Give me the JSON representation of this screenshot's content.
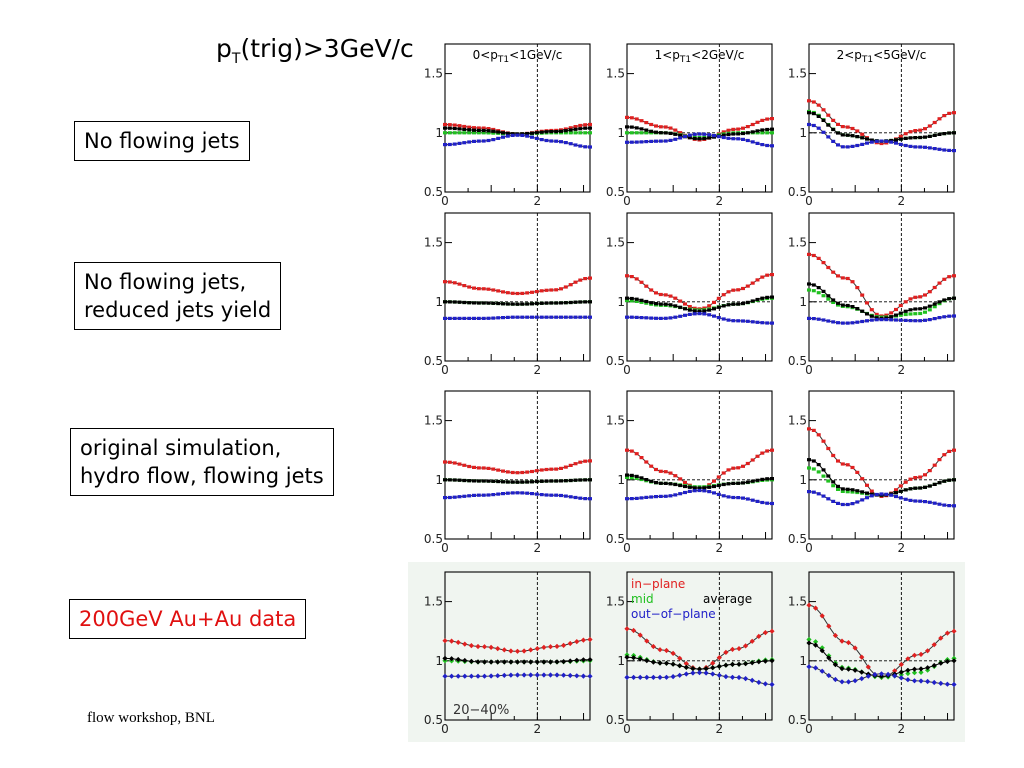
{
  "headline": {
    "main": "p",
    "sub": "T",
    "rest": "(trig)>3GeV/c"
  },
  "column_titles": [
    {
      "pre": "0<p",
      "sub": "T1",
      "post": "<1GeV/c"
    },
    {
      "pre": "1<p",
      "sub": "T1",
      "post": "<2GeV/c"
    },
    {
      "pre": "2<p",
      "sub": "T1",
      "post": "<5GeV/c"
    }
  ],
  "row_labels": [
    [
      "No flowing jets"
    ],
    [
      "No flowing jets,",
      "reduced jets yield"
    ],
    [
      "original simulation,",
      "hydro flow, flowing jets"
    ],
    [
      "200GeV Au+Au data"
    ]
  ],
  "row_label_colors": [
    "#000000",
    "#000000",
    "#000000",
    "#e01010"
  ],
  "footnote": "flow workshop, BNL",
  "centrality_label": "20−40%",
  "colors": {
    "in_plane": "#e02020",
    "mid": "#20c020",
    "average": "#000000",
    "out_of_plane": "#2020c8",
    "fit": "#333333"
  },
  "chart_data": {
    "type": "scatter",
    "layout": "4x3 grid of panels",
    "x_ticks": [
      0,
      2
    ],
    "y_ticks": [
      "0.5",
      "1",
      "1.5"
    ],
    "xlim": [
      0,
      3.14
    ],
    "ylim": [
      0.5,
      1.75
    ],
    "reference_lines": {
      "x": 2.0,
      "y": 1.0
    },
    "legend": [
      {
        "name": "in−plane",
        "series": "in_plane"
      },
      {
        "name": "mid",
        "series": "mid"
      },
      {
        "name": "average",
        "series": "average"
      },
      {
        "name": "out−of−plane",
        "series": "out_of_plane"
      }
    ],
    "legend_panel": [
      3,
      1
    ],
    "panels": [
      [
        {
          "in_plane": [
            1.07,
            1.04,
            0.99,
            1.02,
            1.07
          ],
          "mid": [
            1.0,
            1.0,
            0.99,
            1.0,
            1.0
          ],
          "average": [
            1.04,
            1.02,
            0.99,
            1.01,
            1.04
          ],
          "out_of_plane": [
            0.9,
            0.93,
            0.98,
            0.93,
            0.88
          ]
        },
        {
          "in_plane": [
            1.13,
            1.05,
            0.94,
            1.03,
            1.12
          ],
          "mid": [
            1.0,
            1.0,
            0.96,
            1.0,
            1.0
          ],
          "average": [
            1.05,
            1.0,
            0.95,
            0.99,
            1.03
          ],
          "out_of_plane": [
            0.92,
            0.93,
            0.99,
            0.95,
            0.89
          ]
        },
        {
          "in_plane": [
            1.27,
            1.05,
            0.91,
            1.02,
            1.17
          ],
          "mid": [
            1.18,
            0.98,
            0.93,
            0.96,
            1.0
          ],
          "average": [
            1.17,
            0.98,
            0.93,
            0.96,
            1.0
          ],
          "out_of_plane": [
            1.07,
            0.88,
            0.93,
            0.88,
            0.85
          ]
        }
      ],
      [
        {
          "in_plane": [
            1.17,
            1.11,
            1.07,
            1.1,
            1.2
          ],
          "mid": [
            1.0,
            0.99,
            0.98,
            0.99,
            1.0
          ],
          "average": [
            1.0,
            0.99,
            0.98,
            0.99,
            1.0
          ],
          "out_of_plane": [
            0.86,
            0.86,
            0.87,
            0.87,
            0.87
          ]
        },
        {
          "in_plane": [
            1.22,
            1.06,
            0.94,
            1.1,
            1.23
          ],
          "mid": [
            1.01,
            0.97,
            0.93,
            0.98,
            1.03
          ],
          "average": [
            1.03,
            0.98,
            0.92,
            0.98,
            1.04
          ],
          "out_of_plane": [
            0.87,
            0.86,
            0.9,
            0.84,
            0.82
          ]
        },
        {
          "in_plane": [
            1.4,
            1.2,
            0.88,
            1.04,
            1.22
          ],
          "mid": [
            1.1,
            0.96,
            0.87,
            0.9,
            1.03
          ],
          "average": [
            1.15,
            0.97,
            0.86,
            0.94,
            1.03
          ],
          "out_of_plane": [
            0.86,
            0.82,
            0.85,
            0.84,
            0.88
          ]
        }
      ],
      [
        {
          "in_plane": [
            1.15,
            1.1,
            1.06,
            1.09,
            1.16
          ],
          "mid": [
            1.0,
            0.99,
            0.98,
            0.99,
            1.0
          ],
          "average": [
            1.0,
            0.99,
            0.98,
            0.99,
            1.0
          ],
          "out_of_plane": [
            0.85,
            0.87,
            0.89,
            0.87,
            0.84
          ]
        },
        {
          "in_plane": [
            1.25,
            1.07,
            0.93,
            1.1,
            1.25
          ],
          "mid": [
            1.02,
            0.97,
            0.94,
            0.97,
            1.0
          ],
          "average": [
            1.04,
            0.97,
            0.93,
            0.97,
            1.01
          ],
          "out_of_plane": [
            0.84,
            0.86,
            0.91,
            0.85,
            0.8
          ]
        },
        {
          "in_plane": [
            1.43,
            1.13,
            0.86,
            1.02,
            1.25
          ],
          "mid": [
            1.1,
            0.9,
            0.87,
            0.93,
            1.0
          ],
          "average": [
            1.17,
            0.92,
            0.87,
            0.93,
            1.0
          ],
          "out_of_plane": [
            0.9,
            0.79,
            0.88,
            0.82,
            0.78
          ]
        }
      ],
      [
        {
          "in_plane": [
            1.17,
            1.12,
            1.08,
            1.12,
            1.18
          ],
          "mid": [
            1.0,
            0.99,
            0.99,
            0.99,
            1.0
          ],
          "average": [
            1.02,
            0.99,
            0.99,
            0.99,
            1.01
          ],
          "out_of_plane": [
            0.87,
            0.87,
            0.88,
            0.88,
            0.87
          ]
        },
        {
          "in_plane": [
            1.27,
            1.09,
            0.93,
            1.1,
            1.25
          ],
          "mid": [
            1.05,
            0.98,
            0.93,
            0.97,
            1.01
          ],
          "average": [
            1.03,
            0.98,
            0.93,
            0.97,
            1.0
          ],
          "out_of_plane": [
            0.86,
            0.86,
            0.9,
            0.86,
            0.8
          ]
        },
        {
          "in_plane": [
            1.47,
            1.16,
            0.86,
            1.05,
            1.25
          ],
          "mid": [
            1.18,
            0.94,
            0.86,
            0.9,
            1.02
          ],
          "average": [
            1.15,
            0.93,
            0.87,
            0.93,
            1.0
          ],
          "out_of_plane": [
            0.95,
            0.82,
            0.89,
            0.83,
            0.8
          ]
        }
      ]
    ]
  }
}
